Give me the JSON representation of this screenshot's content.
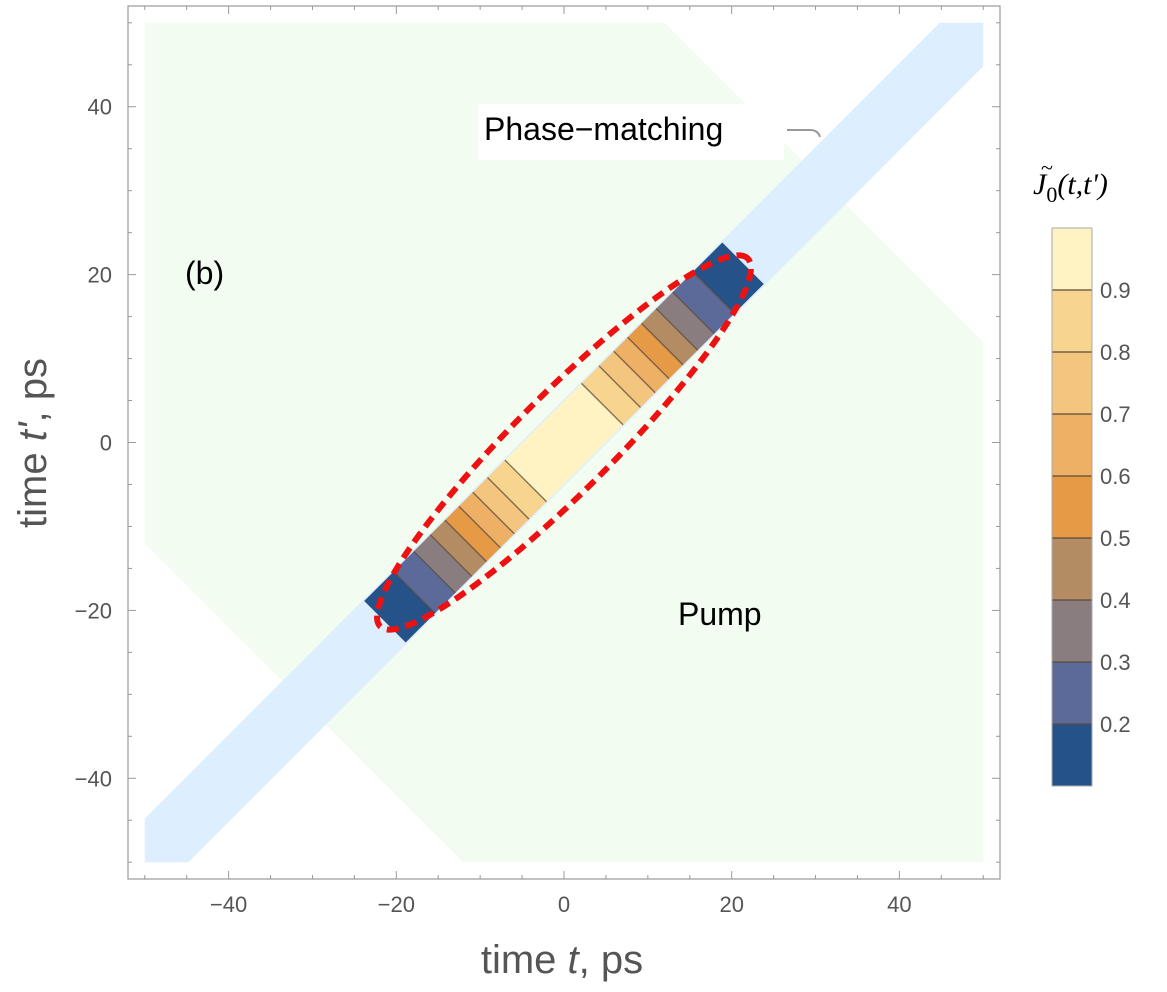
{
  "chart_data": {
    "type": "contour",
    "panel_label": "(b)",
    "xlabel_prefix": "time ",
    "xlabel_var": "t",
    "xlabel_suffix": ", ps",
    "ylabel_prefix": "time ",
    "ylabel_var": "t'",
    "ylabel_suffix": ", ps",
    "xlim": [
      -52,
      52
    ],
    "ylim": [
      -52,
      52
    ],
    "xticks": [
      -40,
      -20,
      0,
      20,
      40
    ],
    "yticks": [
      -40,
      -20,
      0,
      20,
      40
    ],
    "xtick_labels": [
      "−40",
      "−20",
      "0",
      "20",
      "40"
    ],
    "ytick_labels": [
      "−40",
      "−20",
      "0",
      "20",
      "40"
    ],
    "regions": {
      "pump": {
        "label": "Pump",
        "color": "#f3fcf1",
        "corners_data": [
          [
            -50,
            50
          ],
          [
            12,
            50
          ],
          [
            50,
            12
          ],
          [
            50,
            -50
          ],
          [
            -12,
            -50
          ],
          [
            -50,
            -12
          ]
        ]
      },
      "phase_matching": {
        "label": "Phase−matching",
        "color": "#ddefff",
        "half_width_data": 5.2
      }
    },
    "contour": {
      "center_half_width_data": 3.5,
      "levels": [
        0.2,
        0.3,
        0.4,
        0.5,
        0.6,
        0.7,
        0.8,
        0.9
      ],
      "extent_u": 30.2,
      "extent_v": 3.5,
      "bands": [
        {
          "range": [
            0.1,
            0.2
          ],
          "color": "#26528a"
        },
        {
          "range": [
            0.2,
            0.3
          ],
          "color": "#5b6a98"
        },
        {
          "range": [
            0.3,
            0.4
          ],
          "color": "#8a7d80"
        },
        {
          "range": [
            0.4,
            0.5
          ],
          "color": "#b48c63"
        },
        {
          "range": [
            0.5,
            0.6
          ],
          "color": "#e69a46"
        },
        {
          "range": [
            0.6,
            0.7
          ],
          "color": "#eeb065"
        },
        {
          "range": [
            0.7,
            0.8
          ],
          "color": "#f4c57e"
        },
        {
          "range": [
            0.8,
            0.9
          ],
          "color": "#f8d58f"
        },
        {
          "range": [
            0.9,
            1.0
          ],
          "color": "#fff3c4"
        }
      ]
    },
    "dashed_contour": {
      "color": "#ee1111",
      "half_length_data": 31,
      "half_width_data": 5.8
    },
    "colorbar": {
      "title_symbol": "J",
      "title_subscript": "0",
      "title_args": "(t,t')",
      "range": [
        0.1,
        1.0
      ],
      "tick_values": [
        0.2,
        0.3,
        0.4,
        0.5,
        0.6,
        0.7,
        0.8,
        0.9
      ],
      "tick_labels": [
        "0.2",
        "0.3",
        "0.4",
        "0.5",
        "0.6",
        "0.7",
        "0.8",
        "0.9"
      ]
    },
    "annotations": {
      "pump_text": "Pump",
      "phase_matching_text": "Phase−matching"
    }
  }
}
